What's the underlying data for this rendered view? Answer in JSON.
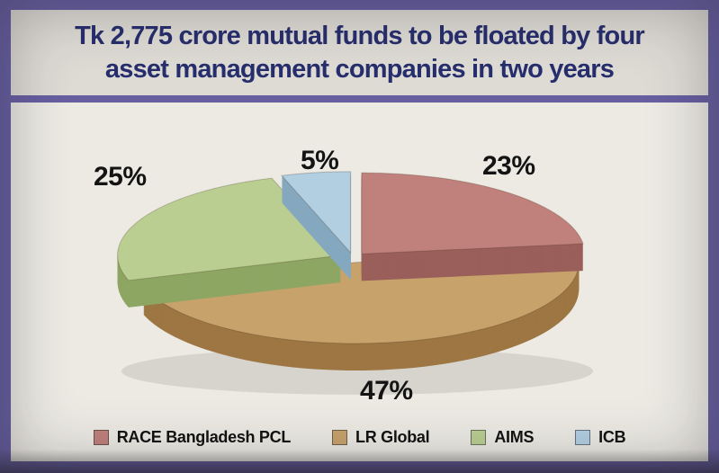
{
  "title": {
    "line1": "Tk 2,775 crore mutual funds to be floated by four",
    "line2": "asset management companies in two years"
  },
  "chart_data": {
    "type": "pie",
    "title": "Tk 2,775 crore mutual funds to be floated by four asset management companies in two years",
    "unit": "%",
    "start_angle_deg": 0,
    "direction": "clockwise",
    "style": "3d-exploded",
    "legend_position": "bottom",
    "slices": [
      {
        "label": "RACE Bangladesh PCL",
        "value": 23,
        "color": "#c0807b",
        "side_color": "#9a5f5b"
      },
      {
        "label": "LR Global",
        "value": 47,
        "color": "#c7a26b",
        "side_color": "#9d7643"
      },
      {
        "label": "AIMS",
        "value": 25,
        "color": "#bace92",
        "side_color": "#8da663"
      },
      {
        "label": "ICB",
        "value": 5,
        "color": "#b2cfe2",
        "side_color": "#85a8bf"
      }
    ]
  },
  "colors": {
    "frame": "#675fa0",
    "paper": "#dedbd4",
    "panel": "#eceae3",
    "title_text": "#272e6d",
    "label_text": "#141414"
  }
}
